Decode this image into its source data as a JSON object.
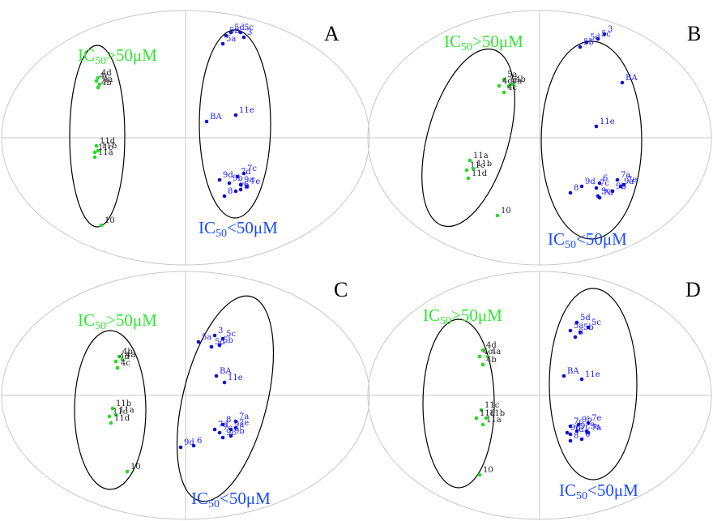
{
  "colors": {
    "active": "#1010d0",
    "inactive": "#22dd22",
    "axis": "#c8c8c8",
    "outer_ellipse": "#c8c8c8",
    "cluster_ellipse": "#000000",
    "label_active": "#1a1aff",
    "label_inactive": "#222222"
  },
  "labels": {
    "inactive_class": "IC50>50μM",
    "inactive_prefix": "IC",
    "inactive_sub": "50",
    "inactive_suffix": ">50μM",
    "active_class": "IC50<50μM",
    "active_prefix": "IC",
    "active_sub": "50",
    "active_suffix": "<50μM"
  },
  "chart_data": [
    {
      "type": "scatter",
      "panel": "A",
      "title": "A",
      "grid": false,
      "series": [
        {
          "class": "inactive",
          "points": [
            {
              "label": "4d",
              "x": -1.08,
              "y": 0.74
            },
            {
              "label": "4c",
              "x": -1.1,
              "y": 0.7
            },
            {
              "label": "4a",
              "x": -1.06,
              "y": 0.66
            },
            {
              "label": "4b",
              "x": -1.08,
              "y": 0.62
            },
            {
              "label": "11d",
              "x": -1.1,
              "y": -0.1
            },
            {
              "label": "11c",
              "x": -1.12,
              "y": -0.18
            },
            {
              "label": "11b",
              "x": -1.08,
              "y": -0.16
            },
            {
              "label": "11a",
              "x": -1.12,
              "y": -0.24
            },
            {
              "label": "10",
              "x": -1.04,
              "y": -1.08
            }
          ]
        },
        {
          "class": "active",
          "points": [
            {
              "label": "5d",
              "x": 0.56,
              "y": 1.3
            },
            {
              "label": "5c",
              "x": 0.68,
              "y": 1.3
            },
            {
              "label": "5b",
              "x": 0.5,
              "y": 1.26
            },
            {
              "label": "3",
              "x": 0.72,
              "y": 1.24
            },
            {
              "label": "5a",
              "x": 0.46,
              "y": 1.16
            },
            {
              "label": "BA",
              "x": 0.26,
              "y": 0.2
            },
            {
              "label": "11e",
              "x": 0.62,
              "y": 0.28
            },
            {
              "label": "7d",
              "x": 0.64,
              "y": -0.48
            },
            {
              "label": "7c",
              "x": 0.72,
              "y": -0.44
            },
            {
              "label": "9d",
              "x": 0.42,
              "y": -0.52
            },
            {
              "label": "9b",
              "x": 0.54,
              "y": -0.56
            },
            {
              "label": "9a",
              "x": 0.68,
              "y": -0.58
            },
            {
              "label": "7e",
              "x": 0.76,
              "y": -0.6
            },
            {
              "label": "7a",
              "x": 0.62,
              "y": -0.66
            },
            {
              "label": "6",
              "x": 0.68,
              "y": -0.64
            },
            {
              "label": "8",
              "x": 0.48,
              "y": -0.72
            }
          ]
        }
      ]
    },
    {
      "type": "scatter",
      "panel": "B",
      "title": "B",
      "grid": false,
      "series": [
        {
          "class": "inactive",
          "points": [
            {
              "label": "5a",
              "x": -0.44,
              "y": 0.72
            },
            {
              "label": "4d",
              "x": -0.5,
              "y": 0.64
            },
            {
              "label": "4b",
              "x": -0.34,
              "y": 0.66
            },
            {
              "label": "4a",
              "x": -0.38,
              "y": 0.64
            },
            {
              "label": "4c",
              "x": -0.44,
              "y": 0.56
            },
            {
              "label": "11a",
              "x": -0.86,
              "y": -0.28
            },
            {
              "label": "11c",
              "x": -0.9,
              "y": -0.4
            },
            {
              "label": "11b",
              "x": -0.82,
              "y": -0.38
            },
            {
              "label": "11d",
              "x": -0.88,
              "y": -0.5
            },
            {
              "label": "10",
              "x": -0.52,
              "y": -0.96
            }
          ]
        },
        {
          "class": "active",
          "points": [
            {
              "label": "5b",
              "x": 0.5,
              "y": 1.12
            },
            {
              "label": "3",
              "x": 0.8,
              "y": 1.28
            },
            {
              "label": "5d",
              "x": 0.58,
              "y": 1.18
            },
            {
              "label": "5c",
              "x": 0.72,
              "y": 1.22
            },
            {
              "label": "BA",
              "x": 1.02,
              "y": 0.68
            },
            {
              "label": "11e",
              "x": 0.7,
              "y": 0.14
            },
            {
              "label": "6",
              "x": 0.74,
              "y": -0.56
            },
            {
              "label": "7a",
              "x": 0.96,
              "y": -0.52
            },
            {
              "label": "9a",
              "x": 1.0,
              "y": -0.6
            },
            {
              "label": "7e",
              "x": 1.04,
              "y": -0.58
            },
            {
              "label": "9d",
              "x": 0.52,
              "y": -0.6
            },
            {
              "label": "7c",
              "x": 0.7,
              "y": -0.62
            },
            {
              "label": "9c",
              "x": 0.72,
              "y": -0.72
            },
            {
              "label": "7d",
              "x": 0.74,
              "y": -0.74
            },
            {
              "label": "9b",
              "x": 0.9,
              "y": -0.66
            },
            {
              "label": "8",
              "x": 0.38,
              "y": -0.68
            }
          ]
        }
      ]
    },
    {
      "type": "scatter",
      "panel": "C",
      "title": "C",
      "grid": false,
      "series": [
        {
          "class": "inactive",
          "points": [
            {
              "label": "4b",
              "x": -0.82,
              "y": 0.48
            },
            {
              "label": "4d",
              "x": -0.86,
              "y": 0.42
            },
            {
              "label": "4a",
              "x": -0.78,
              "y": 0.44
            },
            {
              "label": "4c",
              "x": -0.84,
              "y": 0.34
            },
            {
              "label": "11b",
              "x": -0.9,
              "y": -0.16
            },
            {
              "label": "11c",
              "x": -0.94,
              "y": -0.26
            },
            {
              "label": "11a",
              "x": -0.86,
              "y": -0.24
            },
            {
              "label": "11d",
              "x": -0.92,
              "y": -0.34
            },
            {
              "label": "10",
              "x": -0.72,
              "y": -0.94
            }
          ]
        },
        {
          "class": "active",
          "points": [
            {
              "label": "3",
              "x": 0.36,
              "y": 0.74
            },
            {
              "label": "5a",
              "x": 0.16,
              "y": 0.66
            },
            {
              "label": "5c",
              "x": 0.46,
              "y": 0.7
            },
            {
              "label": "5d",
              "x": 0.32,
              "y": 0.6
            },
            {
              "label": "5b",
              "x": 0.42,
              "y": 0.62
            },
            {
              "label": "BA",
              "x": 0.38,
              "y": 0.24
            },
            {
              "label": "11e",
              "x": 0.48,
              "y": 0.16
            },
            {
              "label": "8",
              "x": 0.46,
              "y": -0.36
            },
            {
              "label": "7a",
              "x": 0.62,
              "y": -0.32
            },
            {
              "label": "7d",
              "x": 0.36,
              "y": -0.42
            },
            {
              "label": "7c",
              "x": 0.42,
              "y": -0.46
            },
            {
              "label": "9a",
              "x": 0.56,
              "y": -0.42
            },
            {
              "label": "7e",
              "x": 0.62,
              "y": -0.4
            },
            {
              "label": "9c",
              "x": 0.46,
              "y": -0.52
            },
            {
              "label": "9b",
              "x": 0.56,
              "y": -0.5
            },
            {
              "label": "9d",
              "x": -0.06,
              "y": -0.64
            },
            {
              "label": "6",
              "x": 0.1,
              "y": -0.62
            }
          ]
        }
      ]
    },
    {
      "type": "scatter",
      "panel": "D",
      "title": "D",
      "grid": false,
      "series": [
        {
          "class": "inactive",
          "points": [
            {
              "label": "4d",
              "x": -0.7,
              "y": 0.56
            },
            {
              "label": "4c",
              "x": -0.74,
              "y": 0.48
            },
            {
              "label": "4a",
              "x": -0.64,
              "y": 0.48
            },
            {
              "label": "4b",
              "x": -0.7,
              "y": 0.38
            },
            {
              "label": "11c",
              "x": -0.72,
              "y": -0.18
            },
            {
              "label": "11d",
              "x": -0.78,
              "y": -0.28
            },
            {
              "label": "11b",
              "x": -0.66,
              "y": -0.28
            },
            {
              "label": "11a",
              "x": -0.7,
              "y": -0.36
            },
            {
              "label": "10",
              "x": -0.74,
              "y": -0.98
            }
          ]
        },
        {
          "class": "active",
          "points": [
            {
              "label": "5d",
              "x": 0.46,
              "y": 0.9
            },
            {
              "label": "5c",
              "x": 0.6,
              "y": 0.84
            },
            {
              "label": "5a",
              "x": 0.38,
              "y": 0.8
            },
            {
              "label": "5b",
              "x": 0.5,
              "y": 0.78
            },
            {
              "label": "3",
              "x": 0.44,
              "y": 0.72
            },
            {
              "label": "BA",
              "x": 0.3,
              "y": 0.24
            },
            {
              "label": "11e",
              "x": 0.52,
              "y": 0.2
            },
            {
              "label": "7c",
              "x": 0.38,
              "y": -0.38
            },
            {
              "label": "9b",
              "x": 0.48,
              "y": -0.36
            },
            {
              "label": "7e",
              "x": 0.6,
              "y": -0.34
            },
            {
              "label": "9d",
              "x": 0.34,
              "y": -0.46
            },
            {
              "label": "7d",
              "x": 0.38,
              "y": -0.48
            },
            {
              "label": "9c",
              "x": 0.46,
              "y": -0.44
            },
            {
              "label": "9a",
              "x": 0.58,
              "y": -0.44
            },
            {
              "label": "7a",
              "x": 0.6,
              "y": -0.46
            },
            {
              "label": "8",
              "x": 0.38,
              "y": -0.56
            },
            {
              "label": "6",
              "x": 0.52,
              "y": -0.54
            }
          ]
        }
      ]
    }
  ]
}
